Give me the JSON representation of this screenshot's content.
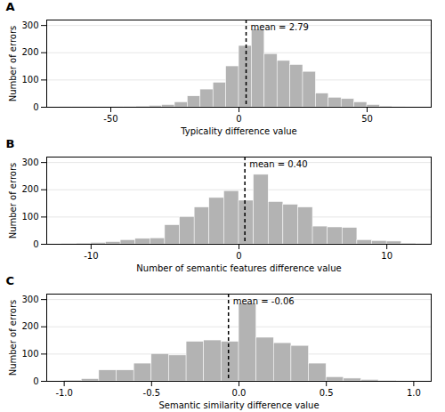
{
  "chart_data": [
    {
      "type": "histogram",
      "title": "A",
      "x_label": "Typicality difference value",
      "y_label": "Number of errors",
      "bins": [
        -70,
        -65,
        -60,
        -55,
        -50,
        -45,
        -40,
        -35,
        -30,
        -25,
        -20,
        -15,
        -10,
        -5,
        0,
        5,
        10,
        15,
        20,
        25,
        30,
        35,
        40,
        45,
        50,
        55,
        60,
        65
      ],
      "values": [
        1,
        1,
        1,
        1,
        2,
        2,
        3,
        5,
        8,
        18,
        40,
        65,
        90,
        150,
        225,
        285,
        195,
        170,
        155,
        130,
        50,
        35,
        30,
        18,
        8,
        3,
        1
      ],
      "color": "#b3b3b3",
      "xlim": [
        -75,
        75
      ],
      "xticks": [
        -50,
        0,
        50
      ],
      "ylim": [
        0,
        320
      ],
      "yticks": [
        0,
        100,
        200,
        300
      ],
      "grid": true,
      "annotations": [
        {
          "text": "mean = 2.79",
          "x": 2.79
        }
      ]
    },
    {
      "type": "histogram",
      "title": "B",
      "x_label": "Number of semantic features difference value",
      "y_label": "Number of errors",
      "bins": [
        -12,
        -11,
        -10,
        -9,
        -8,
        -7,
        -6,
        -5,
        -4,
        -3,
        -2,
        -1,
        0,
        1,
        2,
        3,
        4,
        5,
        6,
        7,
        8,
        9,
        10,
        11,
        12,
        13
      ],
      "values": [
        2,
        3,
        5,
        8,
        15,
        20,
        22,
        70,
        100,
        135,
        170,
        195,
        160,
        255,
        155,
        145,
        135,
        65,
        62,
        60,
        15,
        12,
        10,
        3,
        2
      ],
      "color": "#b3b3b3",
      "xlim": [
        -13,
        13
      ],
      "xticks": [
        -10,
        0,
        10
      ],
      "ylim": [
        0,
        320
      ],
      "yticks": [
        0,
        100,
        200,
        300
      ],
      "grid": true,
      "annotations": [
        {
          "text": "mean = 0.40",
          "x": 0.4
        }
      ]
    },
    {
      "type": "histogram",
      "title": "C",
      "x_label": "Semantic similarity difference value",
      "y_label": "Number of errors",
      "bins": [
        -1.0,
        -0.9,
        -0.8,
        -0.7,
        -0.6,
        -0.5,
        -0.4,
        -0.3,
        -0.2,
        -0.1,
        0.0,
        0.1,
        0.2,
        0.3,
        0.4,
        0.5,
        0.6,
        0.7,
        0.8,
        0.9
      ],
      "values": [
        3,
        8,
        40,
        40,
        65,
        100,
        95,
        145,
        150,
        145,
        285,
        160,
        140,
        130,
        65,
        15,
        10,
        5,
        2
      ],
      "color": "#b3b3b3",
      "xlim": [
        -1.1,
        1.1
      ],
      "xticks": [
        {
          "value": -1.0,
          "label": "-1.0"
        },
        -0.5,
        {
          "value": 0.0,
          "label": "0.0"
        },
        0.5,
        {
          "value": 1.0,
          "label": "1.0"
        }
      ],
      "ylim": [
        0,
        320
      ],
      "yticks": [
        0,
        100,
        200,
        300
      ],
      "grid": true,
      "annotations": [
        {
          "text": "mean = -0.06",
          "x": -0.06
        }
      ]
    }
  ]
}
